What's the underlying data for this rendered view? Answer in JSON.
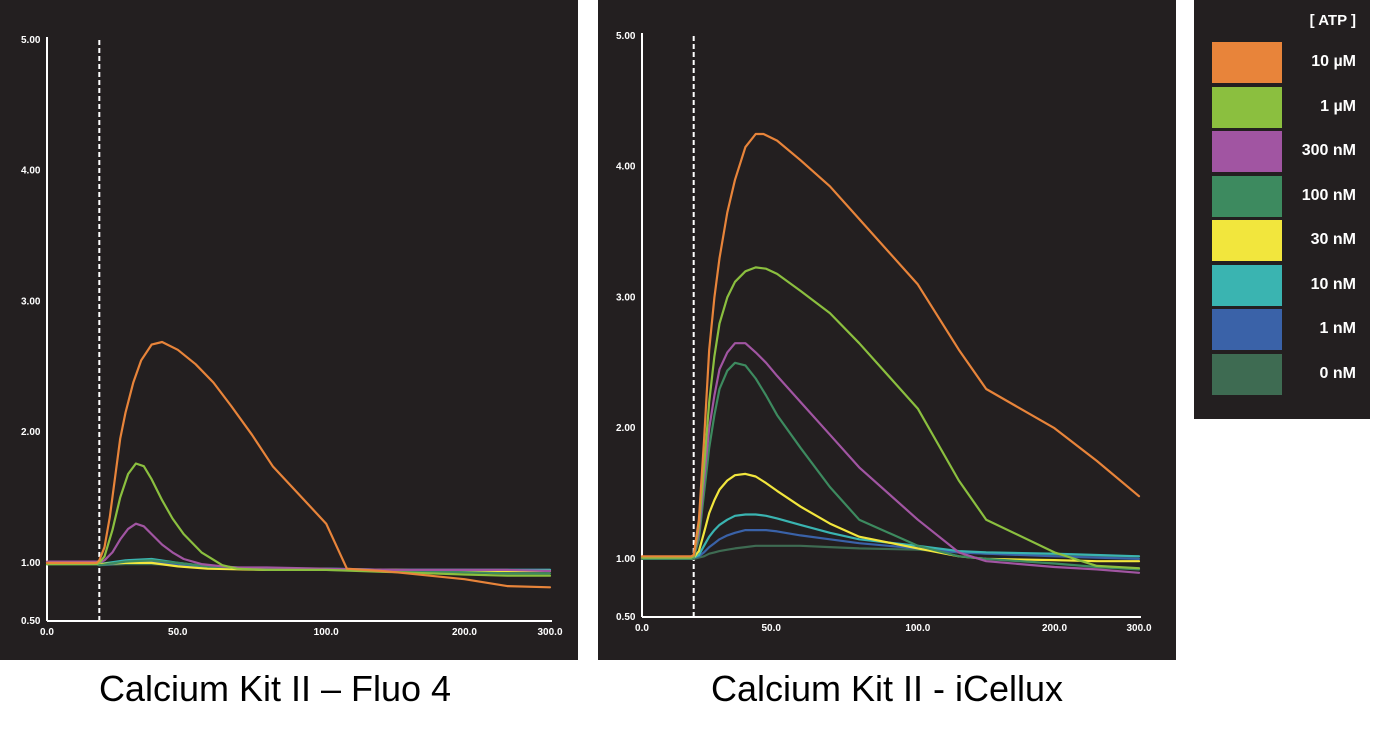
{
  "chart_data": [
    {
      "type": "line",
      "title": "Calcium Kit II – Fluo 4",
      "xlabel": "",
      "ylabel": "",
      "x_ticks": [
        "0.0",
        "50.0",
        "100.0",
        "200.0",
        "300.0"
      ],
      "y_ticks": [
        "0.50",
        "1.00",
        "2.00",
        "3.00",
        "4.00",
        "5.00"
      ],
      "ylim": [
        0.5,
        5.0
      ],
      "addition_marker_x": 20,
      "series": [
        {
          "name": "10 µM",
          "color": "#e8843a",
          "x": [
            0,
            10,
            19,
            20,
            22,
            24,
            26,
            28,
            30,
            33,
            36,
            40,
            44,
            50,
            56,
            62,
            68,
            75,
            82,
            100,
            115,
            140,
            150,
            200,
            250,
            300
          ],
          "y": [
            1.0,
            1.0,
            1.0,
            1.02,
            1.12,
            1.35,
            1.65,
            1.95,
            2.15,
            2.38,
            2.55,
            2.67,
            2.69,
            2.63,
            2.52,
            2.38,
            2.2,
            1.98,
            1.74,
            1.3,
            0.95,
            0.93,
            0.92,
            0.86,
            0.8,
            0.79
          ]
        },
        {
          "name": "1 µM",
          "color": "#8bbf3f",
          "x": [
            0,
            10,
            19,
            20,
            22,
            25,
            28,
            31,
            34,
            37,
            40,
            44,
            48,
            52,
            58,
            65,
            70,
            80,
            100,
            150,
            200,
            250,
            300
          ],
          "y": [
            0.99,
            0.99,
            0.99,
            1.0,
            1.05,
            1.25,
            1.5,
            1.68,
            1.76,
            1.74,
            1.64,
            1.48,
            1.34,
            1.22,
            1.08,
            0.98,
            0.95,
            0.94,
            0.94,
            0.92,
            0.9,
            0.89,
            0.89
          ]
        },
        {
          "name": "300 nM",
          "color": "#a155a2",
          "x": [
            0,
            10,
            19,
            20,
            22,
            25,
            28,
            31,
            34,
            37,
            40,
            44,
            48,
            52,
            58,
            65,
            70,
            80,
            100,
            150,
            200,
            250,
            300
          ],
          "y": [
            1.01,
            1.01,
            1.01,
            1.0,
            1.02,
            1.08,
            1.18,
            1.26,
            1.3,
            1.28,
            1.22,
            1.14,
            1.08,
            1.03,
            0.99,
            0.97,
            0.96,
            0.96,
            0.95,
            0.94,
            0.94,
            0.94,
            0.93
          ]
        },
        {
          "name": "100 nM",
          "color": "#3d8a5f",
          "x": [
            0,
            19,
            20,
            30,
            40,
            50,
            60,
            80,
            100,
            150,
            200,
            250,
            300
          ],
          "y": [
            0.99,
            0.99,
            0.98,
            1.01,
            1.02,
            1.0,
            0.97,
            0.95,
            0.94,
            0.93,
            0.92,
            0.91,
            0.91
          ]
        },
        {
          "name": "30 nM",
          "color": "#f2e63d",
          "x": [
            0,
            19,
            20,
            30,
            40,
            50,
            60,
            80,
            100,
            150,
            200,
            250,
            300
          ],
          "y": [
            1.0,
            1.0,
            0.99,
            1.0,
            1.0,
            0.97,
            0.95,
            0.94,
            0.94,
            0.94,
            0.93,
            0.93,
            0.93
          ]
        },
        {
          "name": "10 nM",
          "color": "#3ab4b1",
          "x": [
            0,
            19,
            20,
            30,
            40,
            50,
            60,
            80,
            100,
            150,
            200,
            250,
            300
          ],
          "y": [
            1.0,
            1.0,
            0.99,
            1.02,
            1.03,
            1.0,
            0.97,
            0.95,
            0.95,
            0.94,
            0.94,
            0.94,
            0.94
          ]
        },
        {
          "name": "1 nM",
          "color": "#3a62a8",
          "x": [
            0,
            19,
            20,
            30,
            40,
            50,
            60,
            80,
            100,
            150,
            200,
            250,
            300
          ],
          "y": [
            0.99,
            0.99,
            0.98,
            1.0,
            1.01,
            0.99,
            0.96,
            0.95,
            0.95,
            0.94,
            0.94,
            0.94,
            0.94
          ]
        },
        {
          "name": "0 nM",
          "color": "#3e6b52",
          "x": [
            0,
            19,
            20,
            30,
            40,
            50,
            60,
            80,
            100,
            150,
            200,
            250,
            300
          ],
          "y": [
            0.99,
            0.99,
            0.98,
            0.99,
            0.99,
            0.98,
            0.96,
            0.95,
            0.95,
            0.94,
            0.94,
            0.93,
            0.93
          ]
        }
      ]
    },
    {
      "type": "line",
      "title": "Calcium Kit II - iCellux",
      "xlabel": "",
      "ylabel": "",
      "x_ticks": [
        "0.0",
        "50.0",
        "100.0",
        "200.0",
        "300.0"
      ],
      "y_ticks": [
        "0.50",
        "1.00",
        "2.00",
        "3.00",
        "4.00",
        "5.00"
      ],
      "ylim": [
        0.5,
        5.0
      ],
      "addition_marker_x": 20,
      "series": [
        {
          "name": "10 µM",
          "color": "#e8843a",
          "x": [
            0,
            10,
            19,
            20,
            22,
            24,
            26,
            28,
            30,
            33,
            36,
            40,
            44,
            47,
            52,
            60,
            70,
            80,
            100,
            130,
            150,
            200,
            250,
            300
          ],
          "y": [
            1.02,
            1.02,
            1.02,
            1.03,
            1.3,
            1.9,
            2.6,
            3.0,
            3.3,
            3.65,
            3.9,
            4.15,
            4.25,
            4.25,
            4.2,
            4.05,
            3.85,
            3.6,
            3.1,
            2.6,
            2.3,
            2.0,
            1.75,
            1.48
          ]
        },
        {
          "name": "1 µM",
          "color": "#8bbf3f",
          "x": [
            0,
            10,
            19,
            20,
            22,
            24,
            26,
            28,
            30,
            33,
            36,
            40,
            44,
            48,
            52,
            60,
            70,
            80,
            100,
            130,
            150,
            200,
            250,
            300
          ],
          "y": [
            1.01,
            1.01,
            1.01,
            1.02,
            1.25,
            1.7,
            2.2,
            2.55,
            2.8,
            3.0,
            3.12,
            3.2,
            3.23,
            3.22,
            3.18,
            3.05,
            2.88,
            2.65,
            2.15,
            1.6,
            1.3,
            1.05,
            0.94,
            0.92
          ]
        },
        {
          "name": "300 nM",
          "color": "#a155a2",
          "x": [
            0,
            10,
            19,
            20,
            22,
            24,
            26,
            28,
            30,
            33,
            36,
            40,
            44,
            48,
            52,
            60,
            70,
            80,
            100,
            130,
            150,
            200,
            250,
            300
          ],
          "y": [
            1.01,
            1.01,
            1.01,
            1.02,
            1.2,
            1.6,
            2.0,
            2.25,
            2.45,
            2.58,
            2.65,
            2.65,
            2.58,
            2.5,
            2.4,
            2.2,
            1.95,
            1.7,
            1.3,
            1.05,
            0.98,
            0.93,
            0.91,
            0.88
          ]
        },
        {
          "name": "100 nM",
          "color": "#3d8a5f",
          "x": [
            0,
            10,
            19,
            20,
            22,
            24,
            26,
            28,
            30,
            33,
            36,
            40,
            44,
            48,
            52,
            60,
            70,
            80,
            100,
            130,
            150,
            200,
            250,
            300
          ],
          "y": [
            1.0,
            1.0,
            1.0,
            1.01,
            1.15,
            1.5,
            1.85,
            2.1,
            2.3,
            2.44,
            2.5,
            2.48,
            2.38,
            2.25,
            2.1,
            1.85,
            1.55,
            1.3,
            1.1,
            1.02,
            1.0,
            0.96,
            0.93,
            0.91
          ]
        },
        {
          "name": "30 nM",
          "color": "#f2e63d",
          "x": [
            0,
            10,
            19,
            20,
            22,
            24,
            26,
            28,
            30,
            33,
            36,
            40,
            44,
            48,
            52,
            60,
            70,
            80,
            100,
            130,
            150,
            200,
            250,
            300
          ],
          "y": [
            1.0,
            1.0,
            1.0,
            1.01,
            1.06,
            1.2,
            1.35,
            1.45,
            1.53,
            1.6,
            1.64,
            1.65,
            1.63,
            1.58,
            1.52,
            1.4,
            1.27,
            1.17,
            1.08,
            1.02,
            1.0,
            0.99,
            0.98,
            0.98
          ]
        },
        {
          "name": "10 nM",
          "color": "#3ab4b1",
          "x": [
            0,
            10,
            19,
            20,
            22,
            24,
            26,
            28,
            30,
            33,
            36,
            40,
            44,
            48,
            52,
            60,
            70,
            80,
            100,
            130,
            150,
            200,
            250,
            300
          ],
          "y": [
            1.0,
            1.0,
            1.0,
            1.01,
            1.03,
            1.1,
            1.17,
            1.22,
            1.26,
            1.3,
            1.33,
            1.34,
            1.34,
            1.33,
            1.31,
            1.26,
            1.2,
            1.15,
            1.1,
            1.06,
            1.05,
            1.04,
            1.03,
            1.02
          ]
        },
        {
          "name": "1 nM",
          "color": "#3a62a8",
          "x": [
            0,
            10,
            19,
            20,
            22,
            24,
            26,
            28,
            30,
            33,
            36,
            40,
            44,
            48,
            52,
            60,
            70,
            80,
            100,
            130,
            150,
            200,
            250,
            300
          ],
          "y": [
            1.0,
            1.0,
            1.0,
            1.01,
            1.02,
            1.05,
            1.09,
            1.12,
            1.15,
            1.18,
            1.2,
            1.22,
            1.22,
            1.22,
            1.21,
            1.18,
            1.15,
            1.12,
            1.08,
            1.05,
            1.04,
            1.02,
            1.01,
            1.0
          ]
        },
        {
          "name": "0 nM",
          "color": "#3e6b52",
          "x": [
            0,
            10,
            19,
            20,
            22,
            24,
            26,
            28,
            30,
            33,
            36,
            40,
            44,
            48,
            52,
            60,
            70,
            80,
            100,
            130,
            150,
            200,
            250,
            300
          ],
          "y": [
            1.0,
            1.0,
            1.0,
            1.0,
            1.01,
            1.02,
            1.04,
            1.05,
            1.06,
            1.07,
            1.08,
            1.09,
            1.1,
            1.1,
            1.1,
            1.1,
            1.09,
            1.08,
            1.07,
            1.05,
            1.04,
            1.03,
            1.02,
            1.02
          ]
        }
      ]
    }
  ],
  "legend": {
    "title": "[ ATP ]",
    "items": [
      {
        "label": "10 µM",
        "color": "#e8843a"
      },
      {
        "label": "1 µM",
        "color": "#8bbf3f"
      },
      {
        "label": "300 nM",
        "color": "#a155a2"
      },
      {
        "label": "100 nM",
        "color": "#3d8a5f"
      },
      {
        "label": "30 nM",
        "color": "#f2e63d"
      },
      {
        "label": "10 nM",
        "color": "#3ab4b1"
      },
      {
        "label": "1 nM",
        "color": "#3a62a8"
      },
      {
        "label": "0 nM",
        "color": "#3e6b52"
      }
    ]
  }
}
